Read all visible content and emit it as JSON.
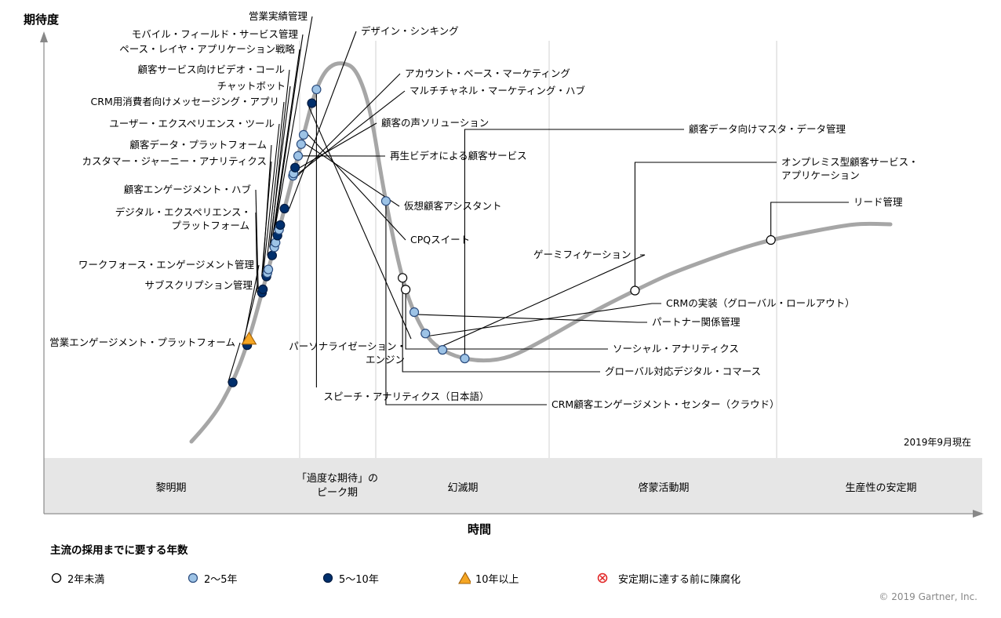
{
  "chart_data": {
    "type": "hype-cycle",
    "ylabel": "期待度",
    "xlabel": "時間",
    "as_of": "2019年9月現在",
    "copyright": "© 2019  Gartner, Inc.",
    "phases": [
      "黎明期",
      "「過度な期待」の|ピーク期",
      "幻滅期",
      "啓蒙活動期",
      "生産性の安定期"
    ],
    "categories": {
      "lt2": {
        "label": "2年未満",
        "color": "#ffffff",
        "shape": "circle"
      },
      "2to5": {
        "label": "2～5年",
        "color": "#9dc3e6",
        "shape": "circle"
      },
      "5to10": {
        "label": "5～10年",
        "color": "#002f6c",
        "shape": "circle"
      },
      "gt10": {
        "label": "10年以上",
        "color": "#f5a623",
        "shape": "triangle"
      },
      "obsolete": {
        "label": "安定期に達する前に陳腐化",
        "color": "#e02020",
        "shape": "crossed-circle"
      }
    },
    "legend_title": "主流の採用までに要する年数",
    "technologies": [
      {
        "name": "営業エンゲージメント・プラットフォーム",
        "t": 0.06,
        "cat": "5to10"
      },
      {
        "name": "サブスクリプション管理",
        "t": 0.093,
        "cat": "5to10"
      },
      {
        "name": "ワークフォース・エンゲージメント管理",
        "t": 0.098,
        "cat": "gt10"
      },
      {
        "name": "デジタル・エクスペリエンス・|プラットフォーム",
        "t": 0.138,
        "cat": "5to10"
      },
      {
        "name": "顧客エンゲージメント・ハブ",
        "t": 0.141,
        "cat": "5to10"
      },
      {
        "name": "カスタマー・ジャーニー・アナリティクス",
        "t": 0.152,
        "cat": "5to10"
      },
      {
        "name": "顧客データ・プラットフォーム",
        "t": 0.155,
        "cat": "2to5"
      },
      {
        "name": "ユーザー・エクスペリエンス・ツール",
        "t": 0.158,
        "cat": "2to5"
      },
      {
        "name": "CRM用消費者向けメッセージング・アプリ",
        "t": 0.17,
        "cat": "5to10"
      },
      {
        "name": "チャットボット",
        "t": 0.177,
        "cat": "2to5"
      },
      {
        "name": "顧客サービス向けビデオ・コール",
        "t": 0.181,
        "cat": "2to5"
      },
      {
        "name": "ペース・レイヤ・アプリケーション戦略",
        "t": 0.187,
        "cat": "5to10"
      },
      {
        "name": "モバイル・フィールド・サービス管理",
        "t": 0.192,
        "cat": "2to5"
      },
      {
        "name": "営業実績管理",
        "t": 0.196,
        "cat": "5to10"
      },
      {
        "name": "デザイン・シンキング",
        "t": 0.21,
        "cat": "5to10"
      },
      {
        "name": "アカウント・ベース・マーケティング",
        "t": 0.238,
        "cat": "2to5"
      },
      {
        "name": "マルチチャネル・マーケティング・ハブ",
        "t": 0.24,
        "cat": "2to5"
      },
      {
        "name": "顧客の声ソリューション",
        "t": 0.245,
        "cat": "5to10"
      },
      {
        "name": "再生ビデオによる顧客サービス",
        "t": 0.255,
        "cat": "2to5"
      },
      {
        "name": "仮想顧客アシスタント",
        "t": 0.265,
        "cat": "2to5"
      },
      {
        "name": "CPQスイート",
        "t": 0.273,
        "cat": "2to5"
      },
      {
        "name": "パーソナライゼーション・|エンジン",
        "t": 0.3,
        "cat": "5to10"
      },
      {
        "name": "スピーチ・アナリティクス（日本語）",
        "t": 0.312,
        "cat": "2to5"
      },
      {
        "name": "CRM顧客エンゲージメント・センター（クラウド）",
        "t": 0.47,
        "cat": "2to5"
      },
      {
        "name": "グローバル対応デジタル・コマース",
        "t": 0.535,
        "cat": "lt2"
      },
      {
        "name": "ソーシャル・アナリティクス",
        "t": 0.545,
        "cat": "lt2"
      },
      {
        "name": "パートナー関係管理",
        "t": 0.565,
        "cat": "2to5"
      },
      {
        "name": "CRMの実装（グローバル・ロールアウト）",
        "t": 0.585,
        "cat": "2to5"
      },
      {
        "name": "ゲーミフィケーション",
        "t": 0.605,
        "cat": "2to5"
      },
      {
        "name": "顧客データ向けマスタ・データ管理",
        "t": 0.625,
        "cat": "2to5"
      },
      {
        "name": "オンプレミス型顧客サービス・|アプリケーション",
        "t": 0.78,
        "cat": "lt2"
      },
      {
        "name": "リード管理",
        "t": 0.9,
        "cat": "lt2"
      }
    ]
  }
}
